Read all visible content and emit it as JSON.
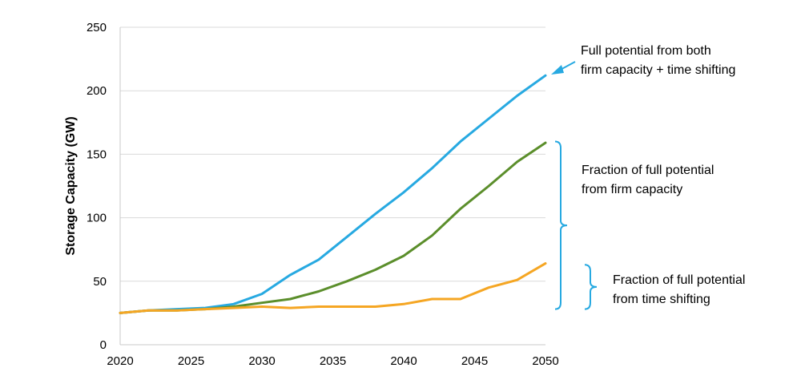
{
  "chart_data": {
    "type": "line",
    "title": "",
    "xlabel": "",
    "ylabel": "Storage Capacity (GW)",
    "xlim": [
      2020,
      2050
    ],
    "ylim": [
      0,
      250
    ],
    "xticks": [
      2020,
      2025,
      2030,
      2035,
      2040,
      2045,
      2050
    ],
    "yticks": [
      0,
      50,
      100,
      150,
      200,
      250
    ],
    "grid": "horizontal",
    "legend": "none",
    "series": [
      {
        "color": "#27a9e1",
        "x": [
          2020,
          2022,
          2024,
          2026,
          2028,
          2030,
          2032,
          2034,
          2036,
          2038,
          2040,
          2042,
          2044,
          2046,
          2048,
          2050
        ],
        "y": [
          25,
          27,
          28,
          29,
          32,
          40,
          55,
          67,
          85,
          103,
          120,
          139,
          160,
          178,
          196,
          212
        ]
      },
      {
        "color": "#5b8e2b",
        "x": [
          2020,
          2022,
          2024,
          2026,
          2028,
          2030,
          2032,
          2034,
          2036,
          2038,
          2040,
          2042,
          2044,
          2046,
          2048,
          2050
        ],
        "y": [
          25,
          27,
          27,
          28,
          30,
          33,
          36,
          42,
          50,
          59,
          70,
          86,
          107,
          125,
          144,
          159
        ]
      },
      {
        "color": "#f5a623",
        "x": [
          2020,
          2022,
          2024,
          2026,
          2028,
          2030,
          2032,
          2034,
          2036,
          2038,
          2040,
          2042,
          2044,
          2046,
          2048,
          2050
        ],
        "y": [
          25,
          27,
          27,
          28,
          29,
          30,
          29,
          30,
          30,
          30,
          32,
          36,
          36,
          45,
          51,
          64
        ]
      }
    ],
    "annotations": [
      {
        "lines": [
          "Full potential from both",
          "firm capacity + time shifting"
        ],
        "color": "#27a9e1",
        "type": "arrow"
      },
      {
        "lines": [
          "Fraction of full potential",
          "from firm capacity"
        ],
        "color": "#27a9e1",
        "type": "bracket",
        "range": [
          28,
          160
        ]
      },
      {
        "lines": [
          "Fraction of full potential",
          "from time shifting"
        ],
        "color": "#27a9e1",
        "type": "bracket",
        "range": [
          28,
          63
        ]
      }
    ]
  }
}
